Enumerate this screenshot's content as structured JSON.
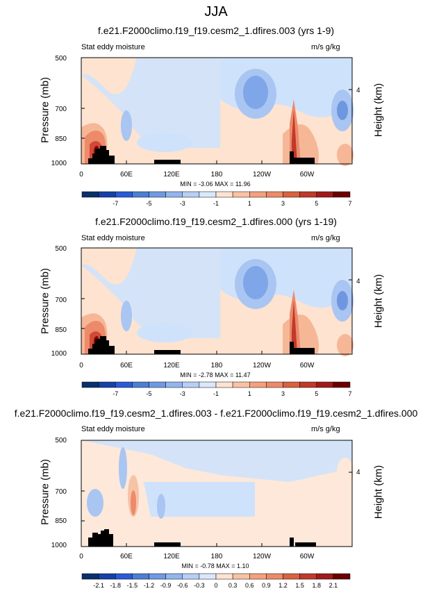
{
  "title": "JJA",
  "panels": [
    {
      "title": "f.e21.F2000climo.f19_f19.cesm2_1.dfires.003 (yrs 1-9)",
      "left_label": "Stat eddy moisture",
      "right_label": "m/s g/kg",
      "ylabel": "Pressure (mb)",
      "ylabel_right": "Height (km)",
      "yticks": [
        "500",
        "700",
        "850",
        "1000"
      ],
      "ytick_right": "4",
      "xticks": [
        "0",
        "60E",
        "120E",
        "180",
        "120W",
        "60W"
      ],
      "minmax": "MIN = -3.06  MAX = 11.96",
      "colorbar_labels": [
        "-7",
        "-5",
        "-3",
        "-1",
        "1",
        "3",
        "5",
        "7"
      ]
    },
    {
      "title": "f.e21.F2000climo.f19_f19.cesm2_1.dfires.000 (yrs 1-19)",
      "left_label": "Stat eddy moisture",
      "right_label": "m/s g/kg",
      "ylabel": "Pressure (mb)",
      "ylabel_right": "Height (km)",
      "yticks": [
        "500",
        "700",
        "850",
        "1000"
      ],
      "ytick_right": "4",
      "xticks": [
        "0",
        "60E",
        "120E",
        "180",
        "120W",
        "60W"
      ],
      "minmax": "MIN = -2.78  MAX = 11.47",
      "colorbar_labels": [
        "-7",
        "-5",
        "-3",
        "-1",
        "1",
        "3",
        "5",
        "7"
      ]
    },
    {
      "title": "f.e21.F2000climo.f19_f19.cesm2_1.dfires.003 - f.e21.F2000climo.f19_f19.cesm2_1.dfires.000",
      "left_label": "Stat eddy moisture",
      "right_label": "m/s g/kg",
      "ylabel": "Pressure (mb)",
      "ylabel_right": "Height (km)",
      "yticks": [
        "500",
        "700",
        "850",
        "1000"
      ],
      "ytick_right": "4",
      "xticks": [
        "0",
        "60E",
        "120E",
        "180",
        "120W",
        "60W"
      ],
      "minmax": "MIN = -0.78  MAX =  1.10",
      "colorbar_labels": [
        "-2.1",
        "-1.8",
        "-1.5",
        "-1.2",
        "-0.9",
        "-0.6",
        "-0.3",
        "0",
        "0.3",
        "0.6",
        "0.9",
        "1.2",
        "1.5",
        "1.8",
        "2.1"
      ]
    }
  ],
  "chart_data": [
    {
      "type": "heatmap",
      "title": "f.e21.F2000climo.f19_f19.cesm2_1.dfires.003 (yrs 1-9)",
      "xlabel": "",
      "ylabel": "Pressure (mb)",
      "x_ticks": [
        "0",
        "60E",
        "120E",
        "180",
        "120W",
        "60W"
      ],
      "y_ticks": [
        500,
        700,
        850,
        1000
      ],
      "min": -3.06,
      "max": 11.96,
      "colorbar_levels": [
        -7,
        -6,
        -5,
        -4,
        -3,
        -2,
        -1,
        0,
        1,
        2,
        3,
        4,
        5,
        6,
        7
      ]
    },
    {
      "type": "heatmap",
      "title": "f.e21.F2000climo.f19_f19.cesm2_1.dfires.000 (yrs 1-19)",
      "xlabel": "",
      "ylabel": "Pressure (mb)",
      "x_ticks": [
        "0",
        "60E",
        "120E",
        "180",
        "120W",
        "60W"
      ],
      "y_ticks": [
        500,
        700,
        850,
        1000
      ],
      "min": -2.78,
      "max": 11.47,
      "colorbar_levels": [
        -7,
        -6,
        -5,
        -4,
        -3,
        -2,
        -1,
        0,
        1,
        2,
        3,
        4,
        5,
        6,
        7
      ]
    },
    {
      "type": "heatmap",
      "title": "f.e21.F2000climo.f19_f19.cesm2_1.dfires.003 - f.e21.F2000climo.f19_f19.cesm2_1.dfires.000",
      "xlabel": "",
      "ylabel": "Pressure (mb)",
      "x_ticks": [
        "0",
        "60E",
        "120E",
        "180",
        "120W",
        "60W"
      ],
      "y_ticks": [
        500,
        700,
        850,
        1000
      ],
      "min": -0.78,
      "max": 1.1,
      "colorbar_levels": [
        -2.1,
        -1.8,
        -1.5,
        -1.2,
        -0.9,
        -0.6,
        -0.3,
        0,
        0.3,
        0.6,
        0.9,
        1.2,
        1.5,
        1.8,
        2.1
      ]
    }
  ],
  "colors": {
    "neg_strong": "#08306b",
    "neg_mid": "#4a7fd6",
    "neg_light": "#cfe2fb",
    "pos_light": "#fde3d0",
    "pos_mid": "#ec8a6a",
    "pos_strong": "#8b0000",
    "terrain": "#000000"
  }
}
